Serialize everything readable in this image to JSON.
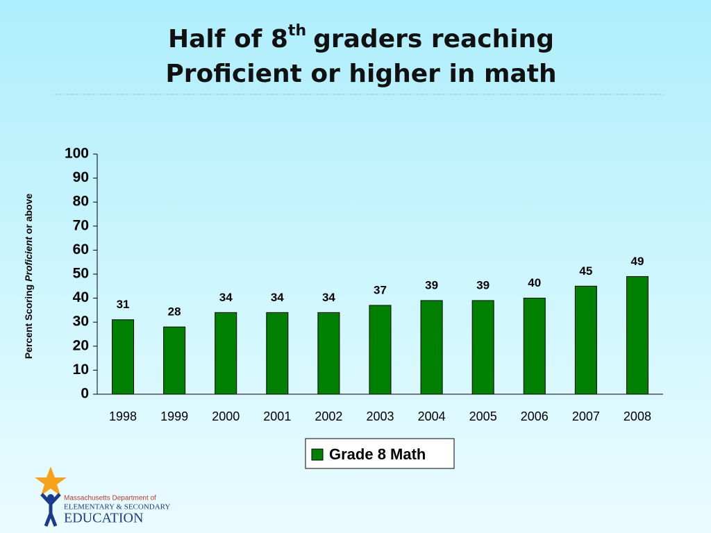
{
  "chart_data": {
    "type": "bar",
    "title": [
      "Half of 8",
      "th",
      "graders reaching",
      "Proficient or higher in math"
    ],
    "ylabel": [
      "Percent Scoring",
      "Proficient",
      "or above"
    ],
    "categories": [
      "1998",
      "1999",
      "2000",
      "2001",
      "2002",
      "2003",
      "2004",
      "2005",
      "2006",
      "2007",
      "2008"
    ],
    "series": [
      {
        "name": "Grade 8 Math",
        "color": "#008000",
        "values": [
          31,
          28,
          34,
          34,
          34,
          37,
          39,
          39,
          40,
          45,
          49
        ]
      }
    ],
    "ylim": [
      0,
      100
    ],
    "yticks": [
      0,
      10,
      20,
      30,
      40,
      50,
      60,
      70,
      80,
      90,
      100
    ],
    "grid": false,
    "legend": "bottom"
  },
  "logo": [
    "Massachusetts Department of",
    "ELEMENTARY & SECONDARY",
    "EDUCATION"
  ]
}
